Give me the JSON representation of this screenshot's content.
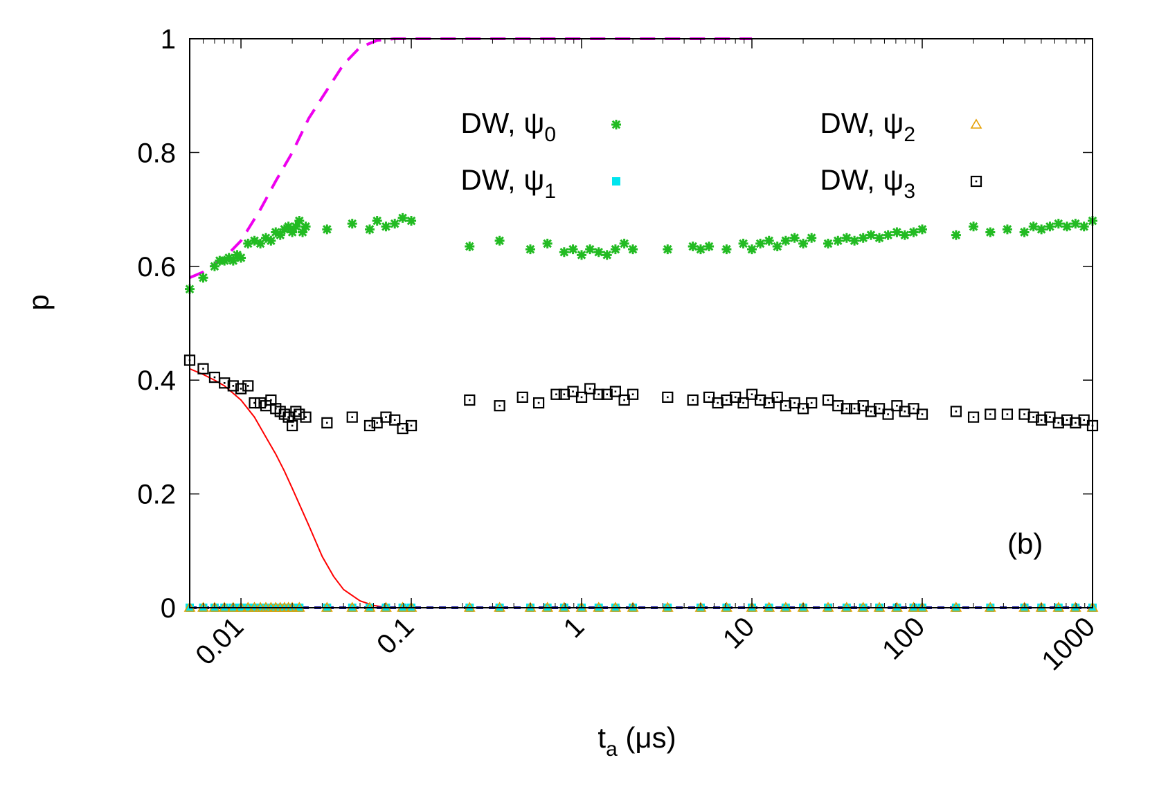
{
  "chart_data": {
    "type": "scatter",
    "panel_label": "(b)",
    "xlabel": {
      "main": "t",
      "sub": "a",
      "rest": " (μs)"
    },
    "ylabel": "p",
    "xscale": "log",
    "xlim": [
      0.005,
      1000
    ],
    "ylim": [
      0,
      1
    ],
    "x_ticks": [
      {
        "value": 0.01,
        "label": "0.01"
      },
      {
        "value": 0.1,
        "label": "0.1"
      },
      {
        "value": 1,
        "label": "1"
      },
      {
        "value": 10,
        "label": "10"
      },
      {
        "value": 100,
        "label": "100"
      },
      {
        "value": 1000,
        "label": "1000"
      }
    ],
    "y_ticks": [
      {
        "value": 0,
        "label": "0"
      },
      {
        "value": 0.2,
        "label": "0.2"
      },
      {
        "value": 0.4,
        "label": "0.4"
      },
      {
        "value": 0.6,
        "label": "0.6"
      },
      {
        "value": 0.8,
        "label": "0.8"
      },
      {
        "value": 1,
        "label": "1"
      }
    ],
    "legend_position": "top",
    "series": [
      {
        "name": "DW, ψ0",
        "legend": {
          "base": "DW, ψ",
          "sub": "0"
        },
        "marker": "asterisk",
        "color": "#22bb22",
        "x": [
          0.005,
          0.006,
          0.007,
          0.0075,
          0.008,
          0.0085,
          0.009,
          0.0095,
          0.01,
          0.011,
          0.012,
          0.013,
          0.014,
          0.015,
          0.016,
          0.017,
          0.018,
          0.019,
          0.02,
          0.021,
          0.022,
          0.023,
          0.024,
          0.032,
          0.045,
          0.057,
          0.063,
          0.071,
          0.08,
          0.089,
          0.1,
          0.22,
          0.33,
          0.5,
          0.63,
          0.79,
          0.89,
          1.0,
          1.12,
          1.26,
          1.41,
          1.58,
          1.78,
          2.0,
          3.2,
          4.5,
          5.0,
          5.6,
          7.1,
          8.9,
          10.0,
          11.2,
          12.6,
          14.1,
          15.8,
          17.8,
          20.0,
          22.4,
          28,
          32,
          36,
          40,
          45,
          50,
          56,
          63,
          71,
          79,
          89,
          100,
          158,
          200,
          251,
          316,
          398,
          450,
          501,
          562,
          631,
          708,
          794,
          891,
          1000
        ],
        "y": [
          0.56,
          0.58,
          0.6,
          0.61,
          0.61,
          0.615,
          0.61,
          0.62,
          0.615,
          0.64,
          0.645,
          0.64,
          0.65,
          0.645,
          0.66,
          0.655,
          0.665,
          0.67,
          0.66,
          0.67,
          0.68,
          0.66,
          0.67,
          0.665,
          0.675,
          0.665,
          0.68,
          0.67,
          0.675,
          0.685,
          0.68,
          0.635,
          0.645,
          0.63,
          0.64,
          0.625,
          0.63,
          0.62,
          0.63,
          0.625,
          0.62,
          0.63,
          0.64,
          0.63,
          0.63,
          0.635,
          0.63,
          0.635,
          0.63,
          0.64,
          0.63,
          0.64,
          0.645,
          0.635,
          0.645,
          0.65,
          0.64,
          0.65,
          0.64,
          0.645,
          0.65,
          0.645,
          0.65,
          0.655,
          0.65,
          0.655,
          0.66,
          0.655,
          0.66,
          0.665,
          0.655,
          0.67,
          0.66,
          0.665,
          0.66,
          0.67,
          0.665,
          0.67,
          0.675,
          0.67,
          0.675,
          0.67,
          0.68
        ]
      },
      {
        "name": "DW, ψ1",
        "legend": {
          "base": "DW, ψ",
          "sub": "1"
        },
        "marker": "filled-square",
        "color": "#00e5ee",
        "x": [
          0.005,
          0.006,
          0.007,
          0.008,
          0.009,
          0.01,
          0.011,
          0.012,
          0.013,
          0.014,
          0.015,
          0.016,
          0.017,
          0.018,
          0.019,
          0.02,
          0.022,
          0.032,
          0.045,
          0.057,
          0.071,
          0.089,
          0.1,
          0.22,
          0.33,
          0.5,
          0.63,
          0.79,
          1.0,
          1.26,
          1.58,
          2.0,
          3.2,
          5.0,
          7.1,
          10.0,
          12.6,
          15.8,
          20.0,
          28,
          36,
          45,
          56,
          71,
          89,
          100,
          158,
          251,
          398,
          501,
          631,
          794,
          1000
        ],
        "y": [
          0,
          0,
          0,
          0,
          0,
          0,
          0,
          0,
          0,
          0,
          0,
          0,
          0,
          0,
          0,
          0,
          0,
          0,
          0,
          0,
          0,
          0,
          0,
          0,
          0,
          0,
          0,
          0,
          0,
          0,
          0,
          0,
          0,
          0,
          0,
          0,
          0,
          0,
          0,
          0,
          0,
          0,
          0,
          0,
          0,
          0,
          0,
          0,
          0,
          0,
          0,
          0,
          0
        ]
      },
      {
        "name": "DW, ψ2",
        "legend": {
          "base": "DW, ψ",
          "sub": "2"
        },
        "marker": "open-triangle",
        "color": "#e69f00",
        "x": [
          0.005,
          0.006,
          0.007,
          0.008,
          0.009,
          0.01,
          0.011,
          0.012,
          0.013,
          0.014,
          0.015,
          0.016,
          0.017,
          0.018,
          0.019,
          0.02,
          0.022,
          0.032,
          0.045,
          0.057,
          0.071,
          0.089,
          0.1,
          0.22,
          0.33,
          0.5,
          0.63,
          0.79,
          1.0,
          1.26,
          1.58,
          2.0,
          3.2,
          5.0,
          7.1,
          10.0,
          12.6,
          15.8,
          20.0,
          28,
          36,
          45,
          56,
          71,
          89,
          100,
          158,
          251,
          398,
          501,
          631,
          794,
          1000
        ],
        "y": [
          0,
          0,
          0,
          0,
          0,
          0,
          0,
          0,
          0,
          0,
          0,
          0,
          0,
          0,
          0,
          0,
          0,
          0,
          0,
          0,
          0,
          0,
          0,
          0,
          0,
          0,
          0,
          0,
          0,
          0,
          0,
          0,
          0,
          0,
          0,
          0,
          0,
          0,
          0,
          0,
          0,
          0,
          0,
          0,
          0,
          0,
          0,
          0,
          0,
          0,
          0,
          0,
          0
        ]
      },
      {
        "name": "DW, ψ3",
        "legend": {
          "base": "DW, ψ",
          "sub": "3"
        },
        "marker": "open-square-dot",
        "color": "#000000",
        "x": [
          0.005,
          0.006,
          0.007,
          0.008,
          0.009,
          0.01,
          0.011,
          0.012,
          0.013,
          0.014,
          0.015,
          0.016,
          0.017,
          0.018,
          0.019,
          0.02,
          0.021,
          0.022,
          0.024,
          0.032,
          0.045,
          0.057,
          0.063,
          0.071,
          0.08,
          0.089,
          0.1,
          0.22,
          0.33,
          0.45,
          0.56,
          0.71,
          0.79,
          0.89,
          1.0,
          1.12,
          1.26,
          1.41,
          1.58,
          1.78,
          2.0,
          3.2,
          4.5,
          5.6,
          6.3,
          7.1,
          8.0,
          8.9,
          10.0,
          11.2,
          12.6,
          14.1,
          15.8,
          17.8,
          20.0,
          22.4,
          28,
          32,
          36,
          40,
          45,
          50,
          56,
          63,
          71,
          79,
          89,
          100,
          158,
          200,
          251,
          316,
          398,
          450,
          501,
          562,
          631,
          708,
          794,
          891,
          1000
        ],
        "y": [
          0.435,
          0.42,
          0.405,
          0.395,
          0.39,
          0.385,
          0.39,
          0.36,
          0.36,
          0.355,
          0.365,
          0.35,
          0.345,
          0.34,
          0.335,
          0.32,
          0.345,
          0.34,
          0.335,
          0.325,
          0.335,
          0.32,
          0.325,
          0.335,
          0.33,
          0.315,
          0.32,
          0.365,
          0.355,
          0.37,
          0.36,
          0.375,
          0.375,
          0.38,
          0.37,
          0.385,
          0.375,
          0.375,
          0.38,
          0.365,
          0.375,
          0.37,
          0.365,
          0.37,
          0.36,
          0.365,
          0.37,
          0.36,
          0.375,
          0.365,
          0.36,
          0.37,
          0.355,
          0.36,
          0.35,
          0.36,
          0.365,
          0.355,
          0.35,
          0.35,
          0.355,
          0.345,
          0.35,
          0.34,
          0.355,
          0.345,
          0.35,
          0.34,
          0.345,
          0.335,
          0.34,
          0.34,
          0.34,
          0.335,
          0.33,
          0.335,
          0.325,
          0.33,
          0.325,
          0.33,
          0.32
        ]
      }
    ],
    "lines": [
      {
        "style": "dashed",
        "color": "#ee00ee",
        "x": [
          0.005,
          0.006,
          0.008,
          0.01,
          0.013,
          0.016,
          0.02,
          0.025,
          0.032,
          0.04,
          0.05,
          0.063,
          0.079,
          0.1,
          0.2,
          0.5,
          1,
          2,
          5,
          10
        ],
        "y": [
          0.58,
          0.59,
          0.615,
          0.645,
          0.7,
          0.75,
          0.8,
          0.86,
          0.91,
          0.955,
          0.985,
          0.997,
          1.0,
          1.0,
          1.0,
          1.0,
          1.0,
          1.0,
          1.0,
          1.0
        ]
      },
      {
        "style": "solid",
        "color": "#ff0000",
        "x": [
          0.005,
          0.006,
          0.007,
          0.008,
          0.01,
          0.012,
          0.014,
          0.016,
          0.018,
          0.02,
          0.025,
          0.03,
          0.035,
          0.04,
          0.05,
          0.06,
          0.07,
          0.08,
          0.1,
          0.2,
          1,
          10,
          100,
          1000
        ],
        "y": [
          0.42,
          0.41,
          0.4,
          0.39,
          0.365,
          0.335,
          0.3,
          0.27,
          0.24,
          0.21,
          0.145,
          0.09,
          0.055,
          0.032,
          0.012,
          0.004,
          0.001,
          0.0,
          0.0,
          0.0,
          0.0,
          0.0,
          0.0,
          0.0
        ]
      },
      {
        "style": "dashed",
        "color": "#1a1aa0",
        "x": [
          0.005,
          1000
        ],
        "y": [
          0,
          0
        ]
      }
    ]
  }
}
